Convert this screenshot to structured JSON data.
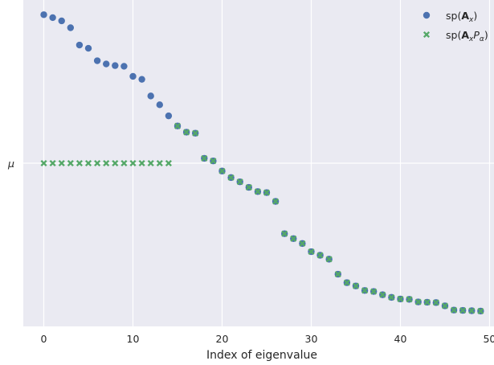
{
  "chart_data": {
    "type": "scatter",
    "title": "",
    "xlabel": "Index of eigenvalue",
    "ylabel": "",
    "xlim": [
      -2.3,
      50.5
    ],
    "ylim": [
      0,
      1
    ],
    "x_ticks": [
      0,
      10,
      20,
      30,
      40,
      50
    ],
    "y_ticks": [
      {
        "value": 0.5,
        "label": "μ"
      }
    ],
    "grid": true,
    "legend_position": "top-right",
    "series": [
      {
        "name": "sp(A_x)",
        "legend_parts": [
          "sp(",
          "A",
          "x",
          ")"
        ],
        "marker": "circle",
        "color": "#4c72b0",
        "x": [
          0,
          1,
          2,
          3,
          4,
          5,
          6,
          7,
          8,
          9,
          10,
          11,
          12,
          13,
          14,
          15,
          16,
          17,
          18,
          19,
          20,
          21,
          22,
          23,
          24,
          25,
          26,
          27,
          28,
          29,
          30,
          31,
          32,
          33,
          34,
          35,
          36,
          37,
          38,
          39,
          40,
          41,
          42,
          43,
          44,
          45,
          46,
          47,
          48,
          49
        ],
        "y": [
          0.955,
          0.946,
          0.936,
          0.915,
          0.862,
          0.852,
          0.814,
          0.804,
          0.799,
          0.797,
          0.766,
          0.757,
          0.706,
          0.679,
          0.645,
          0.614,
          0.595,
          0.592,
          0.515,
          0.507,
          0.476,
          0.456,
          0.443,
          0.426,
          0.413,
          0.41,
          0.383,
          0.284,
          0.269,
          0.254,
          0.229,
          0.218,
          0.206,
          0.16,
          0.134,
          0.124,
          0.11,
          0.107,
          0.097,
          0.089,
          0.084,
          0.083,
          0.075,
          0.074,
          0.073,
          0.063,
          0.05,
          0.049,
          0.048,
          0.047
        ]
      },
      {
        "name": "sp(A_x P_α)",
        "legend_parts": [
          "sp(",
          "A",
          "x",
          "P",
          "α",
          ")"
        ],
        "marker": "x",
        "color": "#55a868",
        "x": [
          0,
          1,
          2,
          3,
          4,
          5,
          6,
          7,
          8,
          9,
          10,
          11,
          12,
          13,
          14,
          15,
          16,
          17,
          18,
          19,
          20,
          21,
          22,
          23,
          24,
          25,
          26,
          27,
          28,
          29,
          30,
          31,
          32,
          33,
          34,
          35,
          36,
          37,
          38,
          39,
          40,
          41,
          42,
          43,
          44,
          45,
          46,
          47,
          48,
          49
        ],
        "y": [
          0.5,
          0.5,
          0.5,
          0.5,
          0.5,
          0.5,
          0.5,
          0.5,
          0.5,
          0.5,
          0.5,
          0.5,
          0.5,
          0.5,
          0.5,
          0.614,
          0.595,
          0.592,
          0.515,
          0.507,
          0.476,
          0.456,
          0.443,
          0.426,
          0.413,
          0.41,
          0.383,
          0.284,
          0.269,
          0.254,
          0.229,
          0.218,
          0.206,
          0.16,
          0.134,
          0.124,
          0.11,
          0.107,
          0.097,
          0.089,
          0.084,
          0.083,
          0.075,
          0.074,
          0.073,
          0.063,
          0.05,
          0.049,
          0.048,
          0.047
        ]
      }
    ]
  },
  "colors": {
    "plot_background": "#eaeaf2",
    "grid": "#ffffff",
    "text": "#262626"
  }
}
